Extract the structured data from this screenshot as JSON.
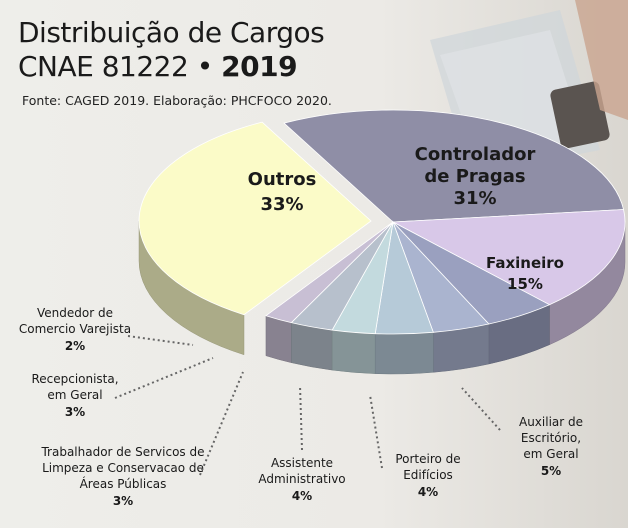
{
  "header": {
    "title_line1": "Distribuição de Cargos",
    "title_line2": "CNAE 81222 •",
    "title_year": "2019",
    "source": "Fonte: CAGED 2019. Elaboração: PHCFOCO 2020."
  },
  "chart_data": {
    "type": "pie",
    "style": "3d-exploded",
    "categories": [
      "Controlador de Pragas",
      "Faxineiro",
      "Auxiliar de Escritório, em Geral",
      "Porteiro de Edifícios",
      "Assistente Administrativo",
      "Trabalhador de Servicos de Limpeza e Conservacao de Áreas Públicas",
      "Recepcionista, em Geral",
      "Vendedor de Comercio Varejista",
      "Outros"
    ],
    "values": [
      31,
      15,
      5,
      4,
      4,
      3,
      3,
      2,
      33
    ],
    "unit": "%",
    "slices": [
      {
        "lines": [
          "Controlador",
          "de Pragas"
        ],
        "pct": "31%",
        "color": "#8f8ea6"
      },
      {
        "lines": [
          "Faxineiro"
        ],
        "pct": "15%",
        "color": "#d8c8e8"
      },
      {
        "lines": [
          "Auxiliar de",
          "Escritório,",
          "em Geral"
        ],
        "pct": "5%",
        "color": "#9aa0bf"
      },
      {
        "lines": [
          "Porteiro de",
          "Edifícios"
        ],
        "pct": "4%",
        "color": "#aab4cf"
      },
      {
        "lines": [
          "Assistente",
          "Administrativo"
        ],
        "pct": "4%",
        "color": "#b6cad8"
      },
      {
        "lines": [
          "Trabalhador de Servicos de",
          "Limpeza e Conservacao de",
          "Áreas Públicas"
        ],
        "pct": "3%",
        "color": "#c3dade"
      },
      {
        "lines": [
          "Recepcionista,",
          "em Geral"
        ],
        "pct": "3%",
        "color": "#b7c0cc"
      },
      {
        "lines": [
          "Vendedor de",
          "Comercio Varejista"
        ],
        "pct": "2%",
        "color": "#c8bfd4"
      },
      {
        "lines": [
          "Outros"
        ],
        "pct": "33%",
        "color": "#fbfbc8"
      }
    ]
  }
}
